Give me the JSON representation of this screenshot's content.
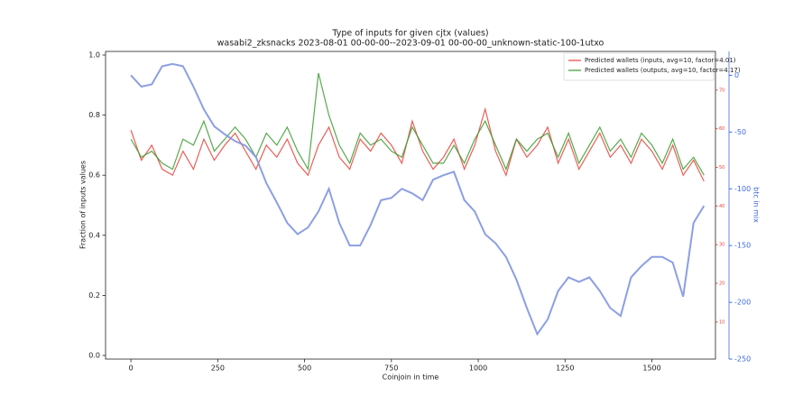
{
  "chart_data": {
    "type": "line",
    "title": "Type of inputs for given cjtx (values)",
    "subtitle": "wasabi2_zksnacks 2023-08-01 00-00-00--2023-09-01 00-00-00_unknown-static-100-1utxo",
    "x_label": "Coinjoin in time",
    "y_label": "Fraction of inputs values",
    "y2_label": "btc in mix",
    "xlim": [
      -73,
      1683
    ],
    "xticks": [
      0,
      250,
      500,
      750,
      1000,
      1250,
      1500
    ],
    "ylim": [
      -0.012,
      1.012
    ],
    "yticks": [
      {
        "value": 0,
        "label": "0.0"
      },
      0.2,
      0.4,
      0.6,
      0.8,
      {
        "value": 1,
        "label": "1.0"
      }
    ],
    "y2lim": [
      -250,
      21
    ],
    "y2ticks": [
      0,
      -50,
      -100,
      -150,
      -200,
      -250
    ],
    "y2color": "#4169e1",
    "y3lim": [
      0.4,
      80
    ],
    "y3ticks": [
      10,
      20,
      30,
      40,
      50,
      60,
      70
    ],
    "y3color": "#e8433a",
    "legend": "upper right",
    "x": [
      0,
      30,
      60,
      90,
      120,
      150,
      180,
      210,
      240,
      270,
      300,
      330,
      360,
      390,
      420,
      450,
      480,
      510,
      540,
      570,
      600,
      630,
      660,
      690,
      720,
      750,
      780,
      810,
      840,
      870,
      900,
      930,
      960,
      990,
      1020,
      1050,
      1080,
      1110,
      1140,
      1170,
      1200,
      1230,
      1260,
      1290,
      1320,
      1350,
      1380,
      1410,
      1440,
      1470,
      1500,
      1530,
      1560,
      1590,
      1620,
      1650
    ],
    "series": [
      {
        "name": "Predicted wallets (inputs, avg=10, factor=4.01)",
        "color": "#e8433a",
        "values": [
          0.75,
          0.65,
          0.7,
          0.62,
          0.6,
          0.68,
          0.62,
          0.72,
          0.65,
          0.7,
          0.74,
          0.68,
          0.62,
          0.7,
          0.66,
          0.72,
          0.64,
          0.6,
          0.7,
          0.76,
          0.66,
          0.62,
          0.72,
          0.68,
          0.74,
          0.7,
          0.64,
          0.78,
          0.68,
          0.62,
          0.66,
          0.72,
          0.62,
          0.7,
          0.82,
          0.68,
          0.6,
          0.72,
          0.66,
          0.7,
          0.76,
          0.64,
          0.72,
          0.62,
          0.68,
          0.74,
          0.66,
          0.7,
          0.64,
          0.72,
          0.68,
          0.62,
          0.7,
          0.6,
          0.65,
          0.58
        ]
      },
      {
        "name": "Predicted wallets (outputs, avg=10, factor=4.17)",
        "color": "#3a9a2e",
        "values": [
          0.72,
          0.66,
          0.68,
          0.64,
          0.62,
          0.72,
          0.7,
          0.78,
          0.68,
          0.72,
          0.76,
          0.72,
          0.66,
          0.74,
          0.7,
          0.76,
          0.68,
          0.62,
          0.94,
          0.8,
          0.7,
          0.64,
          0.74,
          0.7,
          0.72,
          0.68,
          0.66,
          0.76,
          0.7,
          0.64,
          0.64,
          0.7,
          0.64,
          0.72,
          0.78,
          0.7,
          0.62,
          0.72,
          0.68,
          0.72,
          0.74,
          0.66,
          0.74,
          0.64,
          0.7,
          0.76,
          0.68,
          0.72,
          0.66,
          0.74,
          0.7,
          0.64,
          0.72,
          0.62,
          0.66,
          0.6
        ]
      },
      {
        "axis": "y2",
        "color": "#7f95e0",
        "values": [
          0,
          -10,
          -8,
          8,
          10,
          8,
          -10,
          -30,
          -45,
          -52,
          -58,
          -62,
          -72,
          -95,
          -112,
          -130,
          -140,
          -134,
          -120,
          -100,
          -130,
          -150,
          -150,
          -132,
          -110,
          -108,
          -100,
          -104,
          -110,
          -92,
          -88,
          -85,
          -110,
          -120,
          -140,
          -148,
          -160,
          -180,
          -205,
          -228,
          -215,
          -190,
          -178,
          -182,
          -178,
          -190,
          -205,
          -212,
          -178,
          -168,
          -160,
          -160,
          -165,
          -195,
          -130,
          -115
        ]
      }
    ]
  }
}
